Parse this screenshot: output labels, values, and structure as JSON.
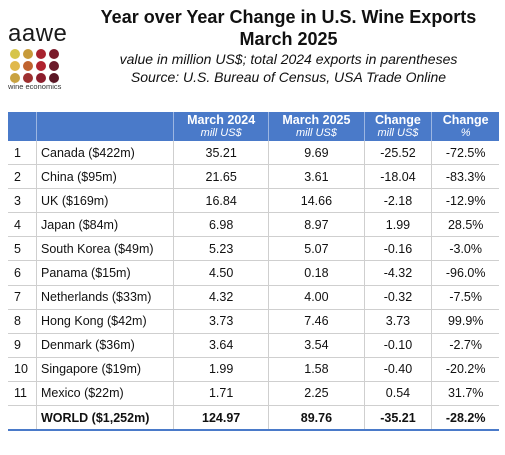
{
  "logo": {
    "word": "aawe",
    "tagline": "wine economics",
    "dot_colors": [
      "#d6c54a",
      "#c79a3a",
      "#a8232f",
      "#7a1a2a",
      "#e0b94c",
      "#c0632f",
      "#b0222e",
      "#6b1a2a",
      "#c9a240",
      "#9e3030",
      "#8c1d2c",
      "#5a1624"
    ]
  },
  "header": {
    "title_line1": "Year over Year Change in U.S. Wine Exports",
    "title_line2": "March 2025",
    "subtitle_line1": "value in million US$; total 2024 exports in parentheses",
    "subtitle_line2": "Source: U.S. Bureau of Census, USA Trade Online"
  },
  "table": {
    "columns": [
      {
        "label": "March 2024",
        "unit": "mill US$"
      },
      {
        "label": "March 2025",
        "unit": "mill US$"
      },
      {
        "label": "Change",
        "unit": "mill US$"
      },
      {
        "label": "Change",
        "unit": "%"
      }
    ],
    "rows": [
      {
        "rank": "1",
        "country": "Canada ($422m)",
        "m2024": "35.21",
        "m2025": "9.69",
        "change": "-25.52",
        "pct": "-72.5%"
      },
      {
        "rank": "2",
        "country": "China ($95m)",
        "m2024": "21.65",
        "m2025": "3.61",
        "change": "-18.04",
        "pct": "-83.3%"
      },
      {
        "rank": "3",
        "country": "UK ($169m)",
        "m2024": "16.84",
        "m2025": "14.66",
        "change": "-2.18",
        "pct": "-12.9%"
      },
      {
        "rank": "4",
        "country": "Japan ($84m)",
        "m2024": "6.98",
        "m2025": "8.97",
        "change": "1.99",
        "pct": "28.5%"
      },
      {
        "rank": "5",
        "country": "South Korea ($49m)",
        "m2024": "5.23",
        "m2025": "5.07",
        "change": "-0.16",
        "pct": "-3.0%"
      },
      {
        "rank": "6",
        "country": "Panama ($15m)",
        "m2024": "4.50",
        "m2025": "0.18",
        "change": "-4.32",
        "pct": "-96.0%"
      },
      {
        "rank": "7",
        "country": "Netherlands ($33m)",
        "m2024": "4.32",
        "m2025": "4.00",
        "change": "-0.32",
        "pct": "-7.5%"
      },
      {
        "rank": "8",
        "country": "Hong Kong ($42m)",
        "m2024": "3.73",
        "m2025": "7.46",
        "change": "3.73",
        "pct": "99.9%"
      },
      {
        "rank": "9",
        "country": "Denmark ($36m)",
        "m2024": "3.64",
        "m2025": "3.54",
        "change": "-0.10",
        "pct": "-2.7%"
      },
      {
        "rank": "10",
        "country": "Singapore ($19m)",
        "m2024": "1.99",
        "m2025": "1.58",
        "change": "-0.40",
        "pct": "-20.2%"
      },
      {
        "rank": "11",
        "country": "Mexico ($22m)",
        "m2024": "1.71",
        "m2025": "2.25",
        "change": "0.54",
        "pct": "31.7%"
      }
    ],
    "total": {
      "label": "WORLD ($1,252m)",
      "m2024": "124.97",
      "m2025": "89.76",
      "change": "-35.21",
      "pct": "-28.2%"
    }
  }
}
